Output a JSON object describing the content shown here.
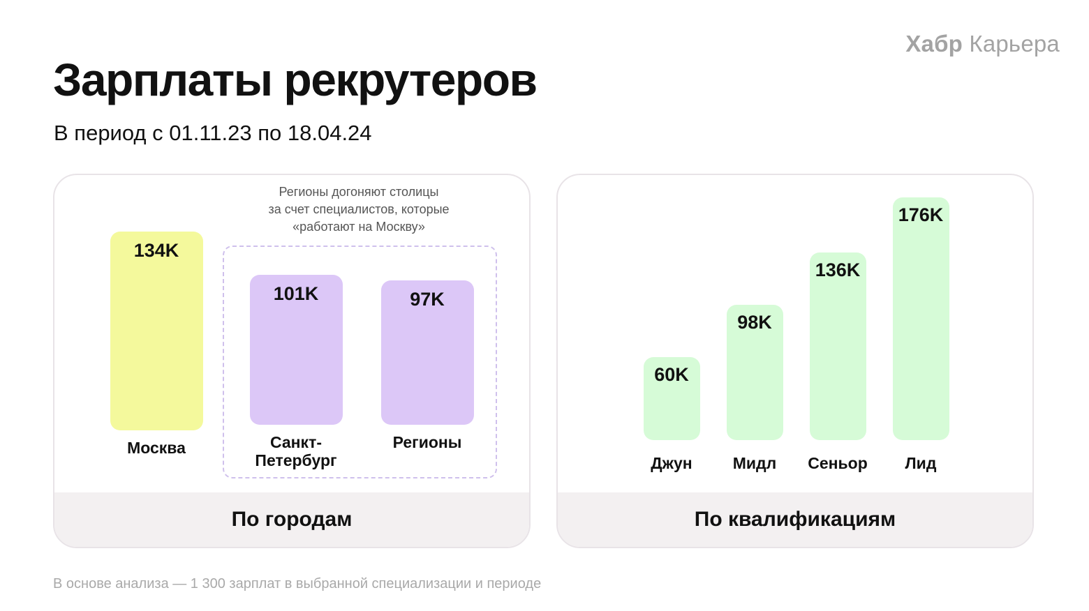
{
  "brand": {
    "bold": "Хабр",
    "light": "Карьера"
  },
  "title": "Зарплаты рекрутеров",
  "subtitle": "В период с 01.11.23 по 18.04.24",
  "footnote": "В основе анализа — 1 300 зарплат в выбранной специализации и периоде",
  "chart_data": [
    {
      "type": "bar",
      "title": "По городам",
      "categories": [
        "Москва",
        "Санкт-\nПетербург",
        "Регионы"
      ],
      "values": [
        134,
        101,
        97
      ],
      "value_labels": [
        "134K",
        "101K",
        "97K"
      ],
      "colors": [
        "#f4f99c",
        "#dcc7f7",
        "#dcc7f7"
      ],
      "annotation": "Регионы догоняют столицы\nза счет специалистов, которые\n«работают на Москву»",
      "grid": false
    },
    {
      "type": "bar",
      "title": "По квалификациям",
      "categories": [
        "Джун",
        "Мидл",
        "Сеньор",
        "Лид"
      ],
      "values": [
        60,
        98,
        136,
        176
      ],
      "value_labels": [
        "60K",
        "98K",
        "136K",
        "176K"
      ],
      "colors": [
        "#d6fbd7",
        "#d6fbd7",
        "#d6fbd7",
        "#d6fbd7"
      ],
      "grid": false
    }
  ]
}
